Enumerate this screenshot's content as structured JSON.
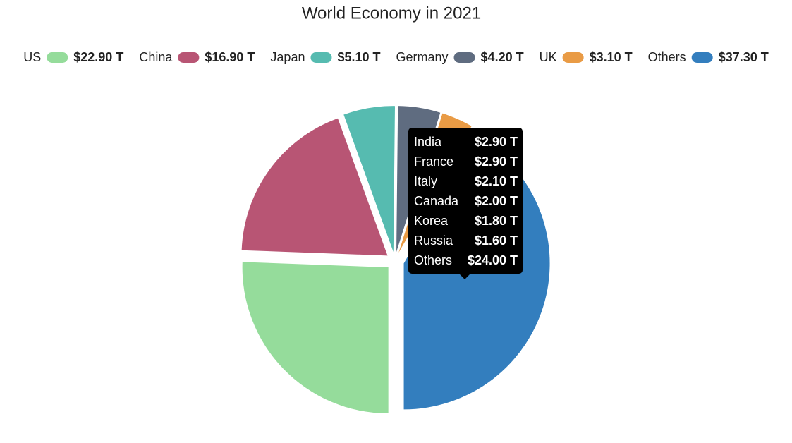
{
  "chart_data": {
    "type": "pie",
    "title": "World Economy in 2021",
    "categories": [
      "US",
      "China",
      "Japan",
      "Germany",
      "UK",
      "Others"
    ],
    "values": [
      22.9,
      16.9,
      5.1,
      4.2,
      3.1,
      37.3
    ],
    "value_labels": [
      "$22.90 T",
      "$16.90 T",
      "$5.10 T",
      "$4.20 T",
      "$3.10 T",
      "$37.30 T"
    ],
    "colors": [
      "#95dc9b",
      "#b85574",
      "#56bbb0",
      "#5f6c80",
      "#e99b45",
      "#337ebe"
    ],
    "tooltip": {
      "categories": [
        "India",
        "France",
        "Italy",
        "Canada",
        "Korea",
        "Russia",
        "Others"
      ],
      "values": [
        2.9,
        2.9,
        2.1,
        2.0,
        1.8,
        1.6,
        24.0
      ],
      "value_labels": [
        "$2.90 T",
        "$2.90 T",
        "$2.10 T",
        "$2.00 T",
        "$1.80 T",
        "$1.60 T",
        "$24.00 T"
      ]
    }
  }
}
